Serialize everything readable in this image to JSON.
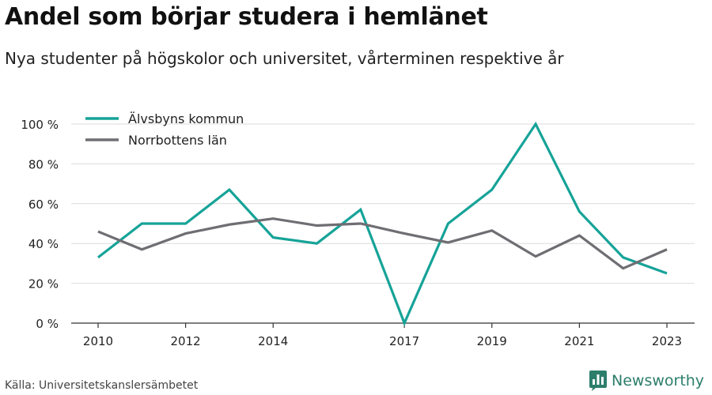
{
  "title": "Andel som börjar studera i hemlänet",
  "subtitle": "Nya studenter på högskolor och universitet, vårterminen respektive år",
  "source": "Källa: Universitetskanslersämbetet",
  "brand": {
    "name": "Newsworthy",
    "icon": "bar-chart-logo-icon",
    "color": "#2c7e6b"
  },
  "chart_data": {
    "type": "line",
    "x": [
      2010,
      2011,
      2012,
      2013,
      2014,
      2015,
      2016,
      2017,
      2018,
      2019,
      2020,
      2021,
      2022,
      2023
    ],
    "x_ticks": [
      2010,
      2012,
      2014,
      2017,
      2019,
      2021,
      2023
    ],
    "y_ticks": [
      "0 %",
      "20 %",
      "40 %",
      "60 %",
      "80 %",
      "100 %"
    ],
    "ylim": [
      0,
      100
    ],
    "grid": true,
    "legend_position": "top-left",
    "series": [
      {
        "name": "Älvsbyns kommun",
        "color": "#16a398",
        "values": [
          33,
          50,
          50,
          67,
          43,
          40,
          57,
          0,
          50,
          67,
          100,
          56,
          33,
          25
        ]
      },
      {
        "name": "Norrbottens län",
        "color": "#6e6e73",
        "values": [
          46,
          37,
          45,
          49.5,
          52.5,
          49,
          50,
          45,
          40.5,
          46.5,
          33.5,
          44,
          27.5,
          37
        ]
      }
    ]
  }
}
